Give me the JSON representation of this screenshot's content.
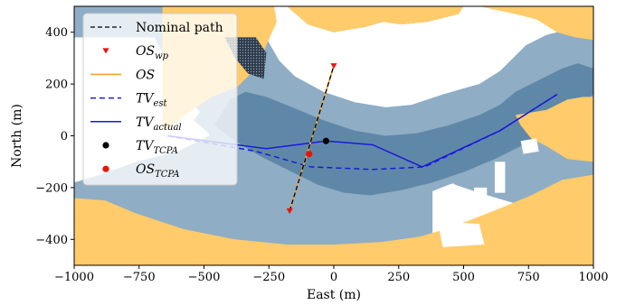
{
  "chart_data": {
    "type": "line",
    "xlabel": "East (m)",
    "ylabel": "North (m)",
    "xlim": [
      -1000,
      1000
    ],
    "ylim": [
      -500,
      500
    ],
    "xticks": [
      -1000,
      -750,
      -500,
      -250,
      0,
      250,
      500,
      750,
      1000
    ],
    "xtick_labels": [
      "−1000",
      "−750",
      "−500",
      "−250",
      "0",
      "250",
      "500",
      "750",
      "1000"
    ],
    "yticks": [
      -400,
      -200,
      0,
      200,
      400
    ],
    "ytick_labels": [
      "−400",
      "−200",
      "0",
      "200",
      "400"
    ],
    "legend_position": "upper-left",
    "colors": {
      "land": "#ffcb6b",
      "shallow_water": "#ffffff",
      "medium_water": "#8fadc4",
      "deep_water": "#5f88a8",
      "os_path": "#f5a430",
      "tv_path": "#1a1adb",
      "os_waypoint": "#e8140c",
      "tv_tcpa": "#000000",
      "os_tcpa": "#e8140c"
    },
    "legend": [
      {
        "key": "nominal",
        "label": "Nominal path",
        "main": "",
        "sub": ""
      },
      {
        "key": "os_wp",
        "label": "",
        "main": "OS",
        "sub": "wp"
      },
      {
        "key": "os",
        "label": "",
        "main": "OS",
        "sub": ""
      },
      {
        "key": "tv_est",
        "label": "",
        "main": "TV",
        "sub": "est"
      },
      {
        "key": "tv_actual",
        "label": "",
        "main": "TV",
        "sub": "actual"
      },
      {
        "key": "tv_tcpa",
        "label": "",
        "main": "TV",
        "sub": "TCPA"
      },
      {
        "key": "os_tcpa",
        "label": "",
        "main": "OS",
        "sub": "TCPA"
      }
    ],
    "series": [
      {
        "key": "nominal",
        "style": "dashed-black",
        "x": [
          -170,
          0
        ],
        "y": [
          -290,
          270
        ]
      },
      {
        "key": "os_wp",
        "style": "triangle-marker",
        "x": [
          -170,
          0
        ],
        "y": [
          -290,
          270
        ]
      },
      {
        "key": "os",
        "style": "solid-orange",
        "x": [
          -170,
          0
        ],
        "y": [
          -290,
          270
        ]
      },
      {
        "key": "tv_est",
        "style": "dashed-blue",
        "x": [
          -640,
          -300,
          -90,
          150,
          350,
          640,
          860
        ],
        "y": [
          0,
          -60,
          -120,
          -130,
          -120,
          20,
          160
        ]
      },
      {
        "key": "tv_actual",
        "style": "solid-blue",
        "x": [
          -640,
          -260,
          -30,
          150,
          340,
          640,
          860
        ],
        "y": [
          0,
          -50,
          -20,
          -35,
          -120,
          20,
          160
        ]
      },
      {
        "key": "tv_tcpa",
        "style": "black-dot",
        "x": [
          -30
        ],
        "y": [
          -20
        ]
      },
      {
        "key": "os_tcpa",
        "style": "red-dot",
        "x": [
          -95
        ],
        "y": [
          -70
        ]
      }
    ],
    "regions": {
      "land": [
        [
          [
            -1000,
            -500
          ],
          [
            1000,
            -500
          ],
          [
            1000,
            -150
          ],
          [
            880,
            -170
          ],
          [
            760,
            -230
          ],
          [
            640,
            -280
          ],
          [
            540,
            -320
          ],
          [
            430,
            -360
          ],
          [
            330,
            -390
          ],
          [
            180,
            -410
          ],
          [
            0,
            -420
          ],
          [
            -180,
            -420
          ],
          [
            -380,
            -400
          ],
          [
            -580,
            -360
          ],
          [
            -760,
            -300
          ],
          [
            -880,
            -250
          ],
          [
            -1000,
            -240
          ]
        ],
        [
          [
            -660,
            500
          ],
          [
            -230,
            500
          ],
          [
            -220,
            440
          ],
          [
            -260,
            350
          ],
          [
            -300,
            260
          ],
          [
            -370,
            190
          ],
          [
            -470,
            150
          ],
          [
            -560,
            90
          ],
          [
            -620,
            40
          ],
          [
            -660,
            20
          ]
        ],
        [
          [
            -180,
            500
          ],
          [
            500,
            500
          ],
          [
            480,
            470
          ],
          [
            360,
            440
          ],
          [
            260,
            430
          ],
          [
            190,
            440
          ],
          [
            120,
            420
          ],
          [
            60,
            410
          ],
          [
            0,
            400
          ],
          [
            -100,
            430
          ]
        ],
        [
          [
            560,
            500
          ],
          [
            1000,
            500
          ],
          [
            1000,
            370
          ],
          [
            930,
            380
          ],
          [
            860,
            400
          ],
          [
            780,
            450
          ],
          [
            700,
            470
          ]
        ],
        [
          [
            700,
            80
          ],
          [
            820,
            100
          ],
          [
            900,
            140
          ],
          [
            960,
            150
          ],
          [
            1000,
            150
          ],
          [
            1000,
            -100
          ],
          [
            900,
            -90
          ],
          [
            820,
            -40
          ],
          [
            760,
            -10
          ],
          [
            720,
            40
          ]
        ]
      ],
      "shallow": [
        [
          [
            -1000,
            380
          ],
          [
            -690,
            380
          ],
          [
            -660,
            320
          ],
          [
            -620,
            240
          ],
          [
            -560,
            150
          ],
          [
            -500,
            70
          ],
          [
            -480,
            0
          ],
          [
            -600,
            -60
          ],
          [
            -760,
            -100
          ],
          [
            -900,
            -150
          ],
          [
            -1000,
            -180
          ]
        ],
        [
          [
            -290,
            500
          ],
          [
            -180,
            500
          ],
          [
            -100,
            430
          ],
          [
            0,
            400
          ],
          [
            60,
            410
          ],
          [
            120,
            420
          ],
          [
            190,
            440
          ],
          [
            260,
            430
          ],
          [
            360,
            440
          ],
          [
            480,
            470
          ],
          [
            500,
            500
          ],
          [
            1000,
            500
          ],
          [
            1000,
            430
          ],
          [
            900,
            410
          ],
          [
            820,
            390
          ],
          [
            740,
            350
          ],
          [
            640,
            250
          ],
          [
            560,
            200
          ],
          [
            420,
            160
          ],
          [
            300,
            120
          ],
          [
            200,
            110
          ],
          [
            80,
            130
          ],
          [
            -40,
            170
          ],
          [
            -150,
            230
          ],
          [
            -210,
            290
          ],
          [
            -250,
            360
          ],
          [
            -280,
            430
          ]
        ],
        [
          [
            380,
            -150
          ],
          [
            420,
            -160
          ],
          [
            470,
            -190
          ],
          [
            560,
            -220
          ],
          [
            660,
            -250
          ],
          [
            760,
            -280
          ],
          [
            840,
            -300
          ],
          [
            900,
            -310
          ],
          [
            1000,
            -310
          ],
          [
            1000,
            -500
          ],
          [
            420,
            -500
          ],
          [
            380,
            -380
          ]
        ]
      ],
      "medium": [
        [
          [
            -540,
            60
          ],
          [
            -460,
            -10
          ],
          [
            -350,
            -70
          ],
          [
            -230,
            -120
          ],
          [
            -100,
            -180
          ],
          [
            0,
            -230
          ],
          [
            120,
            -260
          ],
          [
            230,
            -250
          ],
          [
            340,
            -230
          ],
          [
            440,
            -190
          ],
          [
            560,
            -150
          ],
          [
            660,
            -110
          ],
          [
            760,
            -60
          ],
          [
            840,
            -20
          ],
          [
            920,
            40
          ],
          [
            1000,
            100
          ],
          [
            1000,
            360
          ],
          [
            920,
            380
          ],
          [
            840,
            340
          ],
          [
            740,
            300
          ],
          [
            640,
            220
          ],
          [
            560,
            170
          ],
          [
            440,
            130
          ],
          [
            320,
            90
          ],
          [
            200,
            80
          ],
          [
            80,
            100
          ],
          [
            -40,
            150
          ],
          [
            -160,
            210
          ],
          [
            -240,
            260
          ],
          [
            -300,
            300
          ],
          [
            -360,
            290
          ],
          [
            -420,
            220
          ],
          [
            -480,
            140
          ]
        ]
      ],
      "deep": [
        [
          [
            -460,
            40
          ],
          [
            -380,
            -20
          ],
          [
            -280,
            -80
          ],
          [
            -160,
            -140
          ],
          [
            -60,
            -190
          ],
          [
            40,
            -220
          ],
          [
            140,
            -230
          ],
          [
            260,
            -210
          ],
          [
            380,
            -180
          ],
          [
            500,
            -140
          ],
          [
            620,
            -90
          ],
          [
            720,
            -40
          ],
          [
            800,
            10
          ],
          [
            880,
            70
          ],
          [
            960,
            130
          ],
          [
            1000,
            160
          ],
          [
            1000,
            260
          ],
          [
            940,
            280
          ],
          [
            880,
            260
          ],
          [
            820,
            230
          ],
          [
            760,
            200
          ],
          [
            700,
            170
          ],
          [
            640,
            120
          ],
          [
            560,
            80
          ],
          [
            440,
            40
          ],
          [
            320,
            10
          ],
          [
            200,
            0
          ],
          [
            80,
            20
          ],
          [
            -40,
            60
          ],
          [
            -160,
            110
          ],
          [
            -260,
            150
          ],
          [
            -340,
            170
          ],
          [
            -400,
            140
          ]
        ]
      ],
      "harbor_blocks": [
        [
          [
            400,
            -330
          ],
          [
            560,
            -340
          ],
          [
            580,
            -420
          ],
          [
            420,
            -430
          ]
        ],
        [
          [
            540,
            -200
          ],
          [
            590,
            -200
          ],
          [
            590,
            -260
          ],
          [
            540,
            -260
          ]
        ],
        [
          [
            620,
            -100
          ],
          [
            660,
            -100
          ],
          [
            660,
            -220
          ],
          [
            620,
            -220
          ]
        ],
        [
          [
            720,
            -20
          ],
          [
            780,
            -10
          ],
          [
            790,
            -60
          ],
          [
            730,
            -70
          ]
        ]
      ],
      "dotted": [
        [
          -420,
          380
        ],
        [
          -300,
          380
        ],
        [
          -260,
          320
        ],
        [
          -270,
          220
        ],
        [
          -330,
          240
        ],
        [
          -380,
          300
        ]
      ]
    }
  }
}
